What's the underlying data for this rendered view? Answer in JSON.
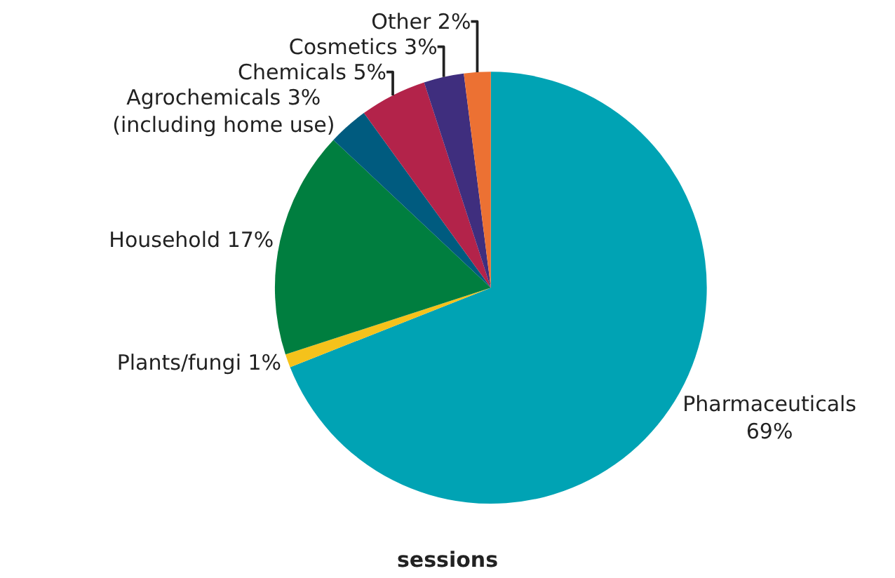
{
  "chart_data": {
    "type": "pie",
    "title": "sessions",
    "categories": [
      "Pharmaceuticals",
      "Plants/fungi",
      "Household",
      "Agrochemicals",
      "Chemicals",
      "Cosmetics",
      "Other"
    ],
    "values": [
      69,
      1,
      17,
      3,
      5,
      3,
      2
    ],
    "value_labels": [
      "69%",
      "1%",
      "17%",
      "3%\n(including home use)",
      "5%",
      "3%",
      "2%"
    ],
    "colors": [
      "#00a3b4",
      "#f5c21b",
      "#007e3f",
      "#005b7f",
      "#b3234a",
      "#3f2e7e",
      "#ec7133"
    ]
  }
}
